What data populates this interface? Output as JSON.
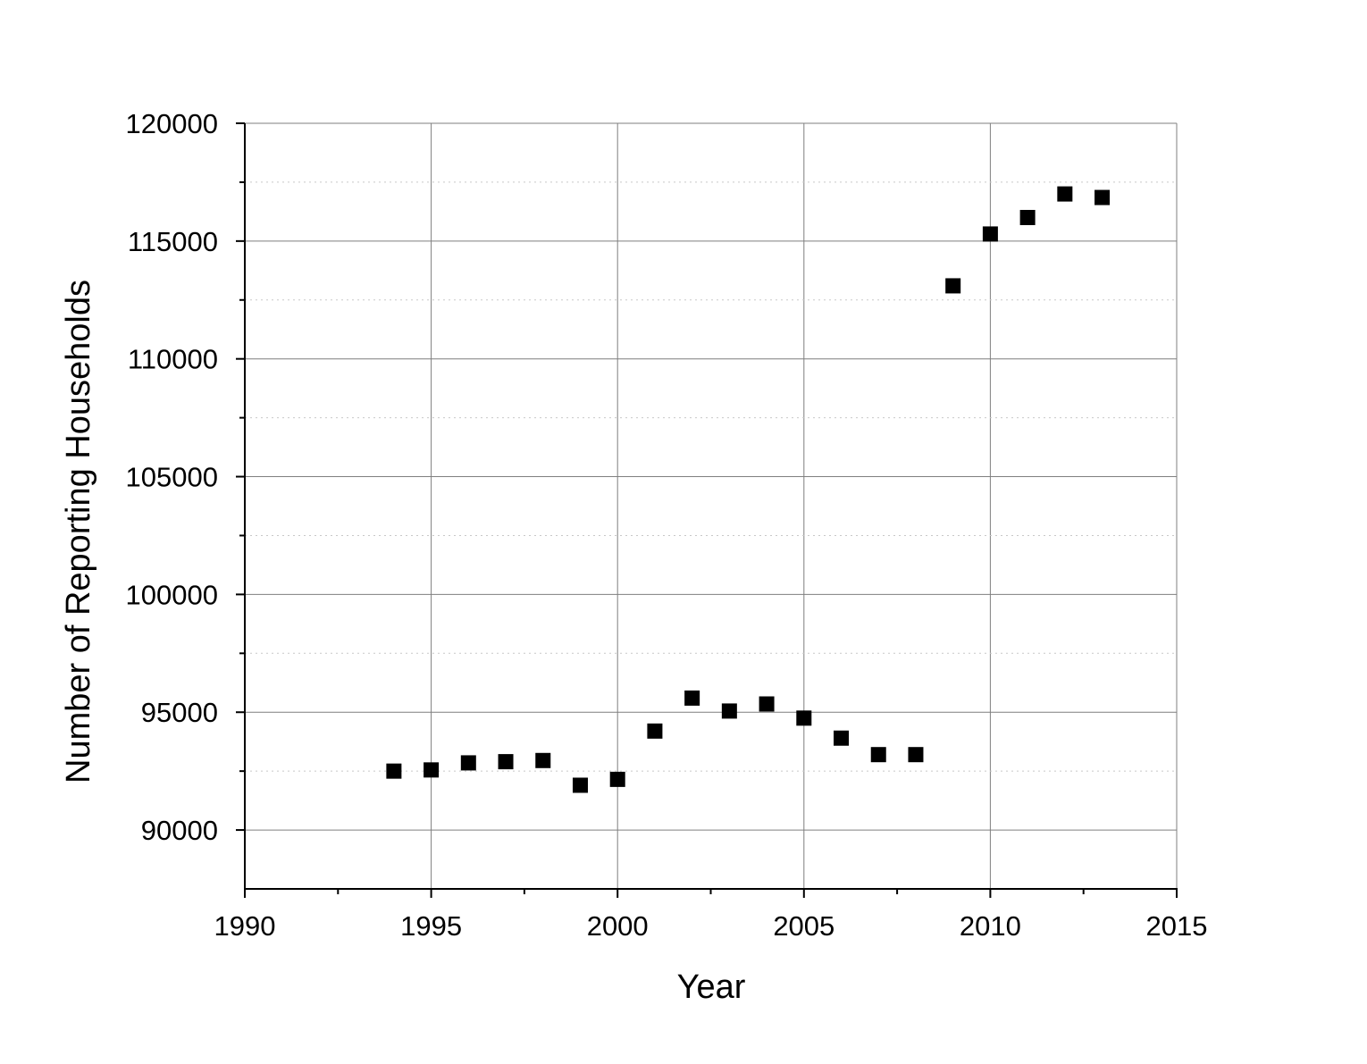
{
  "chart_data": {
    "type": "scatter",
    "title": "",
    "xlabel": "Year",
    "ylabel": "Number of Reporting Households",
    "xlim": [
      1990,
      2015
    ],
    "ylim": [
      87500,
      120000
    ],
    "xticks": [
      1990,
      1995,
      2000,
      2005,
      2010,
      2015
    ],
    "yticks": [
      90000,
      95000,
      100000,
      105000,
      110000,
      115000,
      120000
    ],
    "x_tick_labels": [
      "1990",
      "1995",
      "2000",
      "2005",
      "2010",
      "2015"
    ],
    "y_tick_labels": [
      "90000",
      "95000",
      "100000",
      "105000",
      "110000",
      "115000",
      "120000"
    ],
    "grid": true,
    "legend": "none",
    "marker": "square",
    "marker_color": "#000000",
    "series": [
      {
        "x": [
          1994,
          1995,
          1996,
          1997,
          1998,
          1999,
          2000,
          2001,
          2002,
          2003,
          2004,
          2005,
          2006,
          2007,
          2008,
          2009,
          2010,
          2011,
          2012,
          2013
        ],
        "y": [
          92500,
          92550,
          92850,
          92900,
          92950,
          91900,
          92150,
          94200,
          95600,
          95050,
          95350,
          94750,
          93900,
          93200,
          93200,
          113100,
          115300,
          116000,
          117000,
          116850
        ]
      }
    ]
  }
}
